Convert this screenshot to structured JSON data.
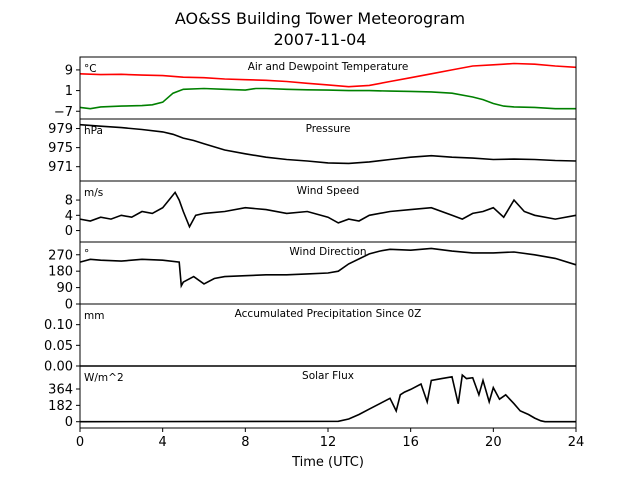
{
  "figure": {
    "title": "AO&SS Building Tower Meteorogram",
    "subtitle": "2007-11-04",
    "xlabel": "Time (UTC)"
  },
  "chart_data": [
    {
      "type": "line",
      "title": "Air and Dewpoint Temperature",
      "unit": "°C",
      "ylim": [
        -10,
        14
      ],
      "yticks": [
        "9",
        "1",
        "−7"
      ],
      "ytick_values": [
        9,
        1,
        -7
      ],
      "xlim": [
        0,
        24
      ],
      "xticks": [
        "0",
        "4",
        "8",
        "12",
        "16",
        "20",
        "24"
      ],
      "series": [
        {
          "color": "#ff0000",
          "x": [
            0,
            1,
            2,
            3,
            4,
            5,
            6,
            7,
            8,
            9,
            10,
            11,
            12,
            13,
            14,
            15,
            16,
            17,
            18,
            19,
            20,
            20.5,
            21,
            22,
            23,
            24
          ],
          "y": [
            7.5,
            7.2,
            7.3,
            7.0,
            6.8,
            6.2,
            6.0,
            5.5,
            5.2,
            5.0,
            4.5,
            3.8,
            3.2,
            2.5,
            3.0,
            4.5,
            6.0,
            7.5,
            9.0,
            10.5,
            11.0,
            11.2,
            11.5,
            11.2,
            10.5,
            10.0
          ]
        },
        {
          "color": "#008000",
          "x": [
            0,
            0.5,
            1,
            2,
            3,
            3.5,
            4,
            4.5,
            5,
            6,
            7,
            8,
            8.5,
            9,
            10,
            11,
            12,
            13,
            14,
            15,
            16,
            17,
            18,
            19,
            19.5,
            20,
            20.5,
            21,
            22,
            23,
            24
          ],
          "y": [
            -5.5,
            -6.0,
            -5.3,
            -5.0,
            -4.8,
            -4.5,
            -3.5,
            0.0,
            1.5,
            1.8,
            1.5,
            1.2,
            1.8,
            1.8,
            1.5,
            1.3,
            1.2,
            1.0,
            1.0,
            0.8,
            0.7,
            0.5,
            0.0,
            -1.5,
            -2.5,
            -4.0,
            -5.0,
            -5.3,
            -5.5,
            -6.0,
            -6.0
          ]
        }
      ]
    },
    {
      "type": "line",
      "title": "Pressure",
      "unit": "hPa",
      "ylim": [
        968,
        981
      ],
      "yticks": [
        "979",
        "975",
        "971"
      ],
      "ytick_values": [
        979,
        975,
        971
      ],
      "series": [
        {
          "color": "#000000",
          "x": [
            0,
            1,
            2,
            3,
            4,
            4.5,
            5,
            5.5,
            6,
            7,
            8,
            9,
            10,
            11,
            12,
            13,
            14,
            15,
            16,
            17,
            18,
            19,
            20,
            21,
            22,
            23,
            24
          ],
          "y": [
            979.8,
            979.5,
            979.2,
            978.8,
            978.3,
            977.8,
            977.0,
            976.5,
            975.8,
            974.5,
            973.7,
            973.0,
            972.5,
            972.2,
            971.8,
            971.7,
            972.0,
            972.5,
            973.0,
            973.3,
            973.0,
            972.8,
            972.5,
            972.6,
            972.5,
            972.3,
            972.2
          ]
        }
      ]
    },
    {
      "type": "line",
      "title": "Wind Speed",
      "unit": "m/s",
      "ylim": [
        -3,
        13
      ],
      "yticks": [
        "8",
        "4",
        "0"
      ],
      "ytick_values": [
        8,
        4,
        0
      ],
      "series": [
        {
          "color": "#000000",
          "x": [
            0,
            0.5,
            1,
            1.5,
            2,
            2.5,
            3,
            3.5,
            4,
            4.3,
            4.6,
            4.8,
            5,
            5.3,
            5.6,
            6,
            7,
            8,
            9,
            10,
            11,
            12,
            12.5,
            13,
            13.5,
            14,
            15,
            16,
            17,
            18,
            18.5,
            19,
            19.5,
            20,
            20.5,
            21,
            21.5,
            22,
            23,
            24
          ],
          "y": [
            3,
            2.5,
            3.5,
            3,
            4,
            3.5,
            5,
            4.5,
            6,
            8,
            10,
            8,
            5,
            1,
            4,
            4.5,
            5,
            6,
            5.5,
            4.5,
            5,
            3.5,
            2,
            3,
            2.5,
            4,
            5,
            5.5,
            6,
            4,
            3,
            4.5,
            5,
            6,
            3.5,
            8,
            5,
            4,
            3,
            4
          ]
        }
      ]
    },
    {
      "type": "line",
      "title": "Wind Direction",
      "unit": "°",
      "ylim": [
        0,
        340
      ],
      "yticks": [
        "270",
        "180",
        "90",
        "0"
      ],
      "ytick_values": [
        270,
        180,
        90,
        0
      ],
      "series": [
        {
          "color": "#000000",
          "x": [
            0,
            0.5,
            1,
            2,
            3,
            4,
            4.8,
            4.9,
            5,
            5.5,
            6,
            6.5,
            7,
            8,
            9,
            10,
            11,
            12,
            12.5,
            13,
            14,
            14.5,
            15,
            16,
            17,
            18,
            19,
            20,
            21,
            22,
            23,
            24
          ],
          "y": [
            230,
            245,
            240,
            235,
            245,
            240,
            230,
            100,
            120,
            150,
            110,
            140,
            150,
            155,
            160,
            160,
            165,
            170,
            180,
            220,
            275,
            290,
            300,
            295,
            305,
            290,
            280,
            280,
            285,
            270,
            250,
            215
          ]
        }
      ]
    },
    {
      "type": "line",
      "title": "Accumulated Precipitation Since 0Z",
      "unit": "mm",
      "ylim": [
        0,
        0.15
      ],
      "yticks": [
        "0.10",
        "0.05",
        "0.00"
      ],
      "ytick_values": [
        0.1,
        0.05,
        0.0
      ],
      "series": [
        {
          "color": "#000000",
          "x": [
            0,
            24
          ],
          "y": [
            0,
            0
          ]
        }
      ]
    },
    {
      "type": "line",
      "title": "Solar Flux",
      "unit": "W/m^2",
      "ylim": [
        -70,
        620
      ],
      "yticks": [
        "364",
        "182",
        "0"
      ],
      "ytick_values": [
        364,
        182,
        0
      ],
      "xlim": [
        0,
        24
      ],
      "xticks": [
        "0",
        "4",
        "8",
        "12",
        "16",
        "20",
        "24"
      ],
      "series": [
        {
          "color": "#000000",
          "x": [
            0,
            12.5,
            13,
            13.5,
            14,
            14.5,
            15,
            15.3,
            15.5,
            15.7,
            16,
            16.5,
            16.8,
            17,
            17.5,
            18,
            18.3,
            18.5,
            18.7,
            19,
            19.3,
            19.5,
            19.8,
            20,
            20.3,
            20.6,
            21,
            21.3,
            21.7,
            22,
            22.3,
            22.5,
            22.8,
            24
          ],
          "y": [
            0,
            5,
            30,
            80,
            140,
            200,
            260,
            120,
            300,
            330,
            360,
            420,
            220,
            460,
            480,
            500,
            200,
            520,
            480,
            490,
            300,
            460,
            220,
            380,
            250,
            300,
            200,
            120,
            80,
            40,
            10,
            0,
            0,
            0
          ]
        }
      ]
    }
  ]
}
